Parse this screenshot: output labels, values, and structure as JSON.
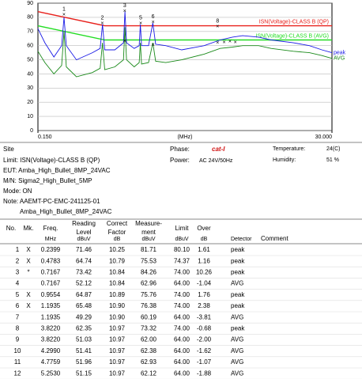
{
  "chart_data": {
    "type": "line",
    "log_x": true,
    "xlabel": "(MHz)",
    "xlim": [
      0.15,
      30
    ],
    "xticks": [
      {
        "value": 0.15,
        "label": "0.150"
      },
      {
        "value": 30,
        "label": "30.000"
      }
    ],
    "ylim": [
      0,
      90
    ],
    "yticks": [
      0,
      10,
      20,
      30,
      40,
      50,
      60,
      70,
      80,
      90
    ],
    "grid": true,
    "series": [
      {
        "name": "ISN(Voltage)-CLASS B (QP)",
        "color": "#e8211c",
        "x": [
          0.15,
          0.5,
          30
        ],
        "values": [
          84,
          74,
          74
        ]
      },
      {
        "name": "ISN(Voltage)-CLASS B (AVG)",
        "color": "#22dd22",
        "x": [
          0.15,
          0.5,
          30
        ],
        "values": [
          74,
          64,
          64
        ]
      },
      {
        "name": "peak",
        "color": "#1a1ae6",
        "x": [
          0.15,
          0.17,
          0.2,
          0.23,
          0.24,
          0.25,
          0.3,
          0.4,
          0.46,
          0.48,
          0.5,
          0.6,
          0.7,
          0.72,
          0.74,
          0.85,
          0.93,
          0.95,
          0.97,
          1.1,
          1.19,
          1.25,
          1.5,
          2,
          3,
          4,
          5,
          6,
          8,
          10,
          15,
          20,
          25,
          30
        ],
        "values": [
          72,
          62,
          52,
          60,
          80,
          60,
          50,
          55,
          58,
          75,
          57,
          57,
          62,
          84,
          62,
          58,
          60,
          75,
          60,
          60,
          76,
          61,
          60,
          57,
          60,
          64,
          66,
          67,
          66,
          64,
          62,
          60,
          57,
          55
        ]
      },
      {
        "name": "AVG",
        "color": "#1a8a1a",
        "x": [
          0.15,
          0.17,
          0.2,
          0.23,
          0.24,
          0.25,
          0.3,
          0.4,
          0.46,
          0.48,
          0.5,
          0.6,
          0.7,
          0.72,
          0.74,
          0.85,
          0.93,
          0.95,
          0.97,
          1.1,
          1.19,
          1.25,
          1.5,
          2,
          3,
          4,
          5,
          6,
          8,
          10,
          15,
          20,
          25,
          30
        ],
        "values": [
          56,
          48,
          40,
          46,
          70,
          45,
          38,
          41,
          44,
          62,
          43,
          45,
          50,
          73,
          50,
          45,
          48,
          62,
          47,
          48,
          62,
          49,
          48,
          50,
          54,
          58,
          59,
          60,
          60,
          58,
          56,
          55,
          53,
          51
        ]
      }
    ]
  },
  "info": {
    "site": "Site",
    "phase_label": "Phase:",
    "phase": "cat-I",
    "temp_label": "Temperature:",
    "temp": "24(C)",
    "limit": "Limit: ISN(Voltage)-CLASS B (QP)",
    "power_label": "Power:",
    "power": "AC 24V/50Hz",
    "hum_label": "Humidity:",
    "hum": "51 %",
    "eut": "EUT: Amba_High_Bullet_8MP_24VAC",
    "mn": "M/N: Sigma2_High_Bullet_5MP",
    "mode": "Mode: ON",
    "note": "Note: AAEMT-PC-EMC-241125-01",
    "note2": "Amba_High_Bullet_8MP_24VAC"
  },
  "table": {
    "header": [
      [
        "No."
      ],
      [
        "Mk."
      ],
      [
        "Freq."
      ],
      [
        "Reading",
        "Level"
      ],
      [
        "Correct",
        "Factor"
      ],
      [
        "Measure-",
        "ment"
      ],
      [
        "Limit"
      ],
      [
        "Over"
      ],
      [
        "Detector"
      ],
      [
        "Comment"
      ]
    ],
    "units": [
      "MHz",
      "dBuV",
      "dB",
      "dBuV",
      "dBuV",
      "dB"
    ],
    "rows": [
      [
        "1",
        "X",
        "0.2399",
        "71.46",
        "10.25",
        "81.71",
        "80.10",
        "1.61",
        "peak"
      ],
      [
        "2",
        "X",
        "0.4783",
        "64.74",
        "10.79",
        "75.53",
        "74.37",
        "1.16",
        "peak"
      ],
      [
        "3",
        "*",
        "0.7167",
        "73.42",
        "10.84",
        "84.26",
        "74.00",
        "10.26",
        "peak"
      ],
      [
        "4",
        null,
        "0.7167",
        "52.12",
        "10.84",
        "62.96",
        "64.00",
        "-1.04",
        "AVG"
      ],
      [
        "5",
        "X",
        "0.9554",
        "64.87",
        "10.89",
        "75.76",
        "74.00",
        "1.76",
        "peak"
      ],
      [
        "6",
        "X",
        "1.1935",
        "65.48",
        "10.90",
        "76.38",
        "74.00",
        "2.38",
        "peak"
      ],
      [
        "7",
        null,
        "1.1935",
        "49.29",
        "10.90",
        "60.19",
        "64.00",
        "-3.81",
        "AVG"
      ],
      [
        "8",
        null,
        "3.8220",
        "62.35",
        "10.97",
        "73.32",
        "74.00",
        "-0.68",
        "peak"
      ],
      [
        "9",
        null,
        "3.8220",
        "51.03",
        "10.97",
        "62.00",
        "64.00",
        "-2.00",
        "AVG"
      ],
      [
        "10",
        null,
        "4.2990",
        "51.41",
        "10.97",
        "62.38",
        "64.00",
        "-1.62",
        "AVG"
      ],
      [
        "11",
        null,
        "4.7759",
        "51.96",
        "10.97",
        "62.93",
        "64.00",
        "-1.07",
        "AVG"
      ],
      [
        "12",
        null,
        "5.2530",
        "51.15",
        "10.97",
        "62.12",
        "64.00",
        "-1.88",
        "AVG"
      ]
    ]
  }
}
